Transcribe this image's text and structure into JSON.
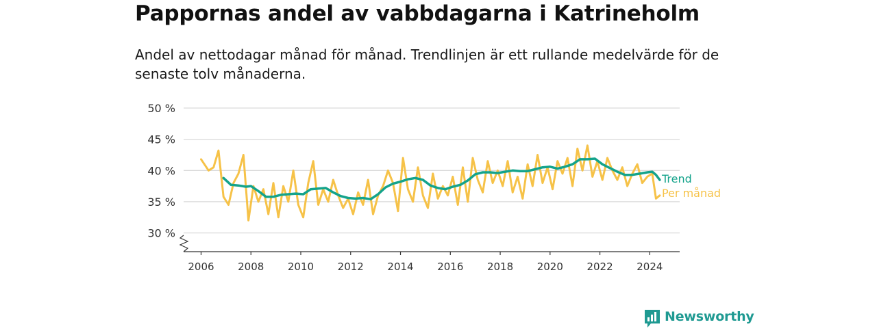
{
  "title": "Pappornas andel av vabbdagarna i Katrineholm",
  "subtitle": "Andel av nettodagar månad för månad. Trendlinjen är ett rullande medelvärde för de senaste tolv månaderna.",
  "brand": {
    "name": "Newsworthy",
    "icon": "bar-chart-speech-icon",
    "color": "#1f9a92"
  },
  "chart_data": {
    "type": "line",
    "ylim": [
      27,
      50
    ],
    "xlim": [
      2005.3,
      2025.2
    ],
    "y_ticks": [
      {
        "value": 30,
        "label": "30 %"
      },
      {
        "value": 35,
        "label": "35 %"
      },
      {
        "value": 40,
        "label": "40 %"
      },
      {
        "value": 45,
        "label": "45 %"
      },
      {
        "value": 50,
        "label": "50 %"
      }
    ],
    "x_ticks": [
      {
        "value": 2006,
        "label": "2006"
      },
      {
        "value": 2008,
        "label": "2008"
      },
      {
        "value": 2010,
        "label": "2010"
      },
      {
        "value": 2012,
        "label": "2012"
      },
      {
        "value": 2014,
        "label": "2014"
      },
      {
        "value": 2016,
        "label": "2016"
      },
      {
        "value": 2018,
        "label": "2018"
      },
      {
        "value": 2020,
        "label": "2020"
      },
      {
        "value": 2022,
        "label": "2022"
      },
      {
        "value": 2024,
        "label": "2024"
      }
    ],
    "grid": true,
    "axis_break": true,
    "series": [
      {
        "name": "Per månad",
        "color": "#f6c248",
        "x": [
          2006.0,
          2006.3,
          2006.5,
          2006.7,
          2006.9,
          2007.1,
          2007.3,
          2007.5,
          2007.7,
          2007.9,
          2008.1,
          2008.3,
          2008.5,
          2008.7,
          2008.9,
          2009.1,
          2009.3,
          2009.5,
          2009.7,
          2009.9,
          2010.1,
          2010.3,
          2010.5,
          2010.7,
          2010.9,
          2011.1,
          2011.3,
          2011.5,
          2011.7,
          2011.9,
          2012.1,
          2012.3,
          2012.5,
          2012.7,
          2012.9,
          2013.1,
          2013.3,
          2013.5,
          2013.7,
          2013.9,
          2014.1,
          2014.3,
          2014.5,
          2014.7,
          2014.9,
          2015.1,
          2015.3,
          2015.5,
          2015.7,
          2015.9,
          2016.1,
          2016.3,
          2016.5,
          2016.7,
          2016.9,
          2017.1,
          2017.3,
          2017.5,
          2017.7,
          2017.9,
          2018.1,
          2018.3,
          2018.5,
          2018.7,
          2018.9,
          2019.1,
          2019.3,
          2019.5,
          2019.7,
          2019.9,
          2020.1,
          2020.3,
          2020.5,
          2020.7,
          2020.9,
          2021.1,
          2021.3,
          2021.5,
          2021.7,
          2021.9,
          2022.1,
          2022.3,
          2022.5,
          2022.7,
          2022.9,
          2023.1,
          2023.3,
          2023.5,
          2023.7,
          2023.9,
          2024.1,
          2024.25,
          2024.4
        ],
        "values": [
          41.8,
          40.0,
          40.5,
          43.2,
          35.8,
          34.5,
          38.0,
          39.5,
          42.5,
          32.0,
          37.5,
          35.0,
          37.0,
          33.0,
          38.0,
          32.5,
          37.5,
          35.0,
          40.0,
          34.5,
          32.5,
          38.0,
          41.5,
          34.5,
          37.0,
          35.0,
          38.5,
          36.0,
          34.0,
          35.5,
          33.0,
          36.5,
          34.5,
          38.5,
          33.0,
          36.0,
          37.5,
          40.0,
          38.0,
          33.5,
          42.0,
          37.0,
          35.0,
          40.5,
          36.0,
          34.0,
          39.5,
          35.5,
          37.5,
          36.0,
          39.0,
          34.5,
          40.5,
          35.0,
          42.0,
          38.5,
          36.5,
          41.5,
          38.0,
          40.0,
          37.5,
          41.5,
          36.5,
          39.0,
          35.5,
          41.0,
          37.5,
          42.5,
          38.0,
          40.5,
          37.0,
          41.5,
          39.5,
          42.0,
          37.5,
          43.5,
          40.0,
          44.0,
          39.0,
          41.5,
          38.5,
          42.0,
          40.0,
          38.5,
          40.5,
          37.5,
          39.5,
          41.0,
          38.0,
          39.0,
          39.5,
          35.5,
          36.0
        ]
      },
      {
        "name": "Trend",
        "color": "#14a38b",
        "x": [
          2006.9,
          2007.2,
          2007.5,
          2007.8,
          2008.0,
          2008.3,
          2008.6,
          2008.9,
          2009.2,
          2009.5,
          2009.8,
          2010.1,
          2010.4,
          2010.7,
          2011.0,
          2011.3,
          2011.6,
          2011.9,
          2012.2,
          2012.5,
          2012.8,
          2013.1,
          2013.4,
          2013.7,
          2014.0,
          2014.3,
          2014.6,
          2014.9,
          2015.2,
          2015.5,
          2015.8,
          2016.1,
          2016.4,
          2016.7,
          2017.0,
          2017.3,
          2017.6,
          2017.9,
          2018.2,
          2018.5,
          2018.8,
          2019.1,
          2019.4,
          2019.7,
          2020.0,
          2020.3,
          2020.6,
          2020.9,
          2021.2,
          2021.5,
          2021.8,
          2022.1,
          2022.4,
          2022.7,
          2023.0,
          2023.3,
          2023.6,
          2023.9,
          2024.1,
          2024.25,
          2024.4
        ],
        "values": [
          38.8,
          37.7,
          37.6,
          37.4,
          37.5,
          36.7,
          35.8,
          35.8,
          36.1,
          36.2,
          36.3,
          36.2,
          37.0,
          37.1,
          37.2,
          36.5,
          35.9,
          35.6,
          35.5,
          35.6,
          35.4,
          36.2,
          37.3,
          37.9,
          38.2,
          38.6,
          38.8,
          38.5,
          37.6,
          37.2,
          37.0,
          37.4,
          37.7,
          38.4,
          39.4,
          39.7,
          39.7,
          39.6,
          39.8,
          40.0,
          39.9,
          39.9,
          40.2,
          40.5,
          40.6,
          40.3,
          40.6,
          41.0,
          41.8,
          41.8,
          41.9,
          41.0,
          40.4,
          39.8,
          39.3,
          39.3,
          39.5,
          39.7,
          39.8,
          39.3,
          38.5
        ]
      }
    ]
  }
}
